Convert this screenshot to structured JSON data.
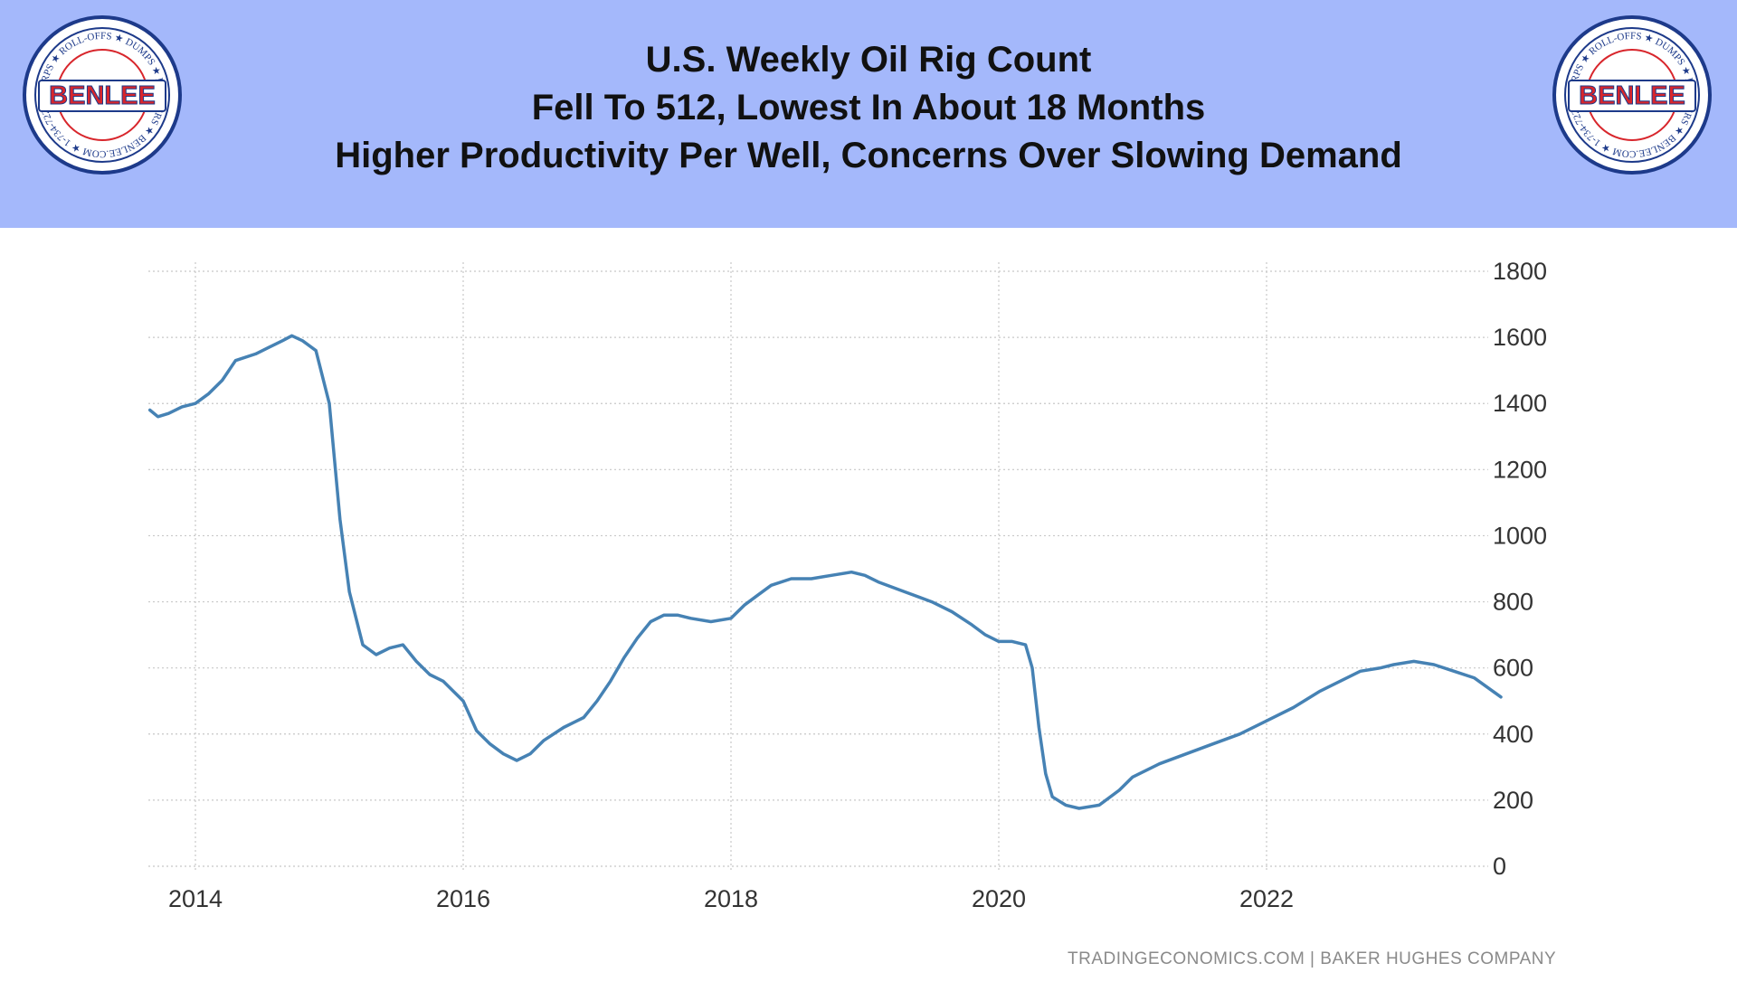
{
  "header": {
    "title_lines": [
      "U.S. Weekly Oil Rig Count",
      "Fell To 512, Lowest In About 18 Months",
      "Higher Productivity Per Well, Concerns Over Slowing Demand"
    ],
    "background_color": "#a4b8fb"
  },
  "logo": {
    "brand": "BENLEE",
    "ring_text": "TARPS ★ ROLL-OFFS ★ DUMPS ★ LUGGERS ★ BENLEE.COM ★ 1-734-722-8100 ★ PARTS ★",
    "colors": {
      "ring": "#1d3a8a",
      "brand": "#d8262c"
    }
  },
  "source": "TRADINGECONOMICS.COM  |  BAKER HUGHES COMPANY",
  "chart_data": {
    "type": "line",
    "x_tick_labels": [
      "2014",
      "2016",
      "2018",
      "2020",
      "2022"
    ],
    "y_tick_labels": [
      "0",
      "200",
      "400",
      "600",
      "800",
      "1000",
      "1200",
      "1400",
      "1600",
      "1800"
    ],
    "ylim": [
      0,
      1800
    ],
    "xlim": [
      2013.66,
      2023.75
    ],
    "grid": true,
    "y_axis_side": "right",
    "line_color": "#4682b4",
    "series": [
      {
        "x": [
          2013.66,
          2013.72,
          2013.8,
          2013.9,
          2014.0,
          2014.1,
          2014.2,
          2014.3,
          2014.45,
          2014.55,
          2014.65,
          2014.72,
          2014.8,
          2014.9,
          2015.0,
          2015.08,
          2015.15,
          2015.25,
          2015.35,
          2015.45,
          2015.55,
          2015.65,
          2015.75,
          2015.85,
          2016.0,
          2016.1,
          2016.2,
          2016.3,
          2016.4,
          2016.5,
          2016.6,
          2016.75,
          2016.9,
          2017.0,
          2017.1,
          2017.2,
          2017.3,
          2017.4,
          2017.5,
          2017.6,
          2017.7,
          2017.85,
          2018.0,
          2018.1,
          2018.2,
          2018.3,
          2018.45,
          2018.6,
          2018.75,
          2018.9,
          2019.0,
          2019.1,
          2019.3,
          2019.5,
          2019.65,
          2019.8,
          2019.9,
          2020.0,
          2020.1,
          2020.2,
          2020.25,
          2020.3,
          2020.35,
          2020.4,
          2020.5,
          2020.6,
          2020.75,
          2020.9,
          2021.0,
          2021.2,
          2021.4,
          2021.6,
          2021.8,
          2022.0,
          2022.2,
          2022.4,
          2022.55,
          2022.7,
          2022.85,
          2022.95,
          2023.1,
          2023.25,
          2023.4,
          2023.55,
          2023.75
        ],
        "y": [
          1380,
          1360,
          1370,
          1390,
          1400,
          1430,
          1470,
          1530,
          1550,
          1570,
          1590,
          1605,
          1590,
          1560,
          1400,
          1050,
          830,
          670,
          640,
          660,
          670,
          620,
          580,
          560,
          500,
          410,
          370,
          340,
          320,
          340,
          380,
          420,
          450,
          500,
          560,
          630,
          690,
          740,
          760,
          760,
          750,
          740,
          750,
          790,
          820,
          850,
          870,
          870,
          880,
          890,
          880,
          860,
          830,
          800,
          770,
          730,
          700,
          680,
          680,
          670,
          600,
          420,
          280,
          210,
          185,
          175,
          185,
          230,
          270,
          310,
          340,
          370,
          400,
          440,
          480,
          530,
          560,
          590,
          600,
          610,
          620,
          610,
          590,
          570,
          512
        ]
      }
    ]
  }
}
